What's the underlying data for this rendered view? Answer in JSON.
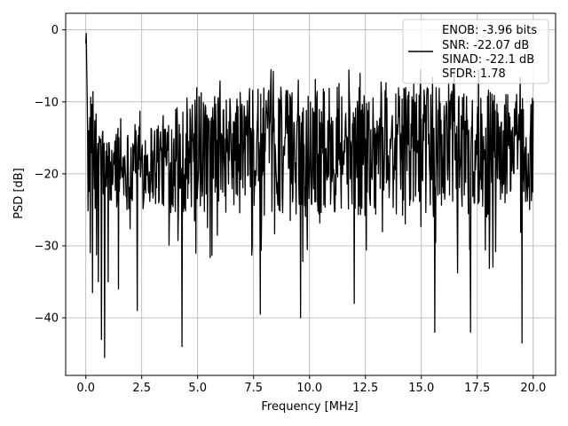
{
  "chart_data": {
    "type": "line",
    "xlabel": "Frequency [MHz]",
    "ylabel": "PSD [dB]",
    "xlim": [
      -0.9,
      21.0
    ],
    "ylim": [
      -48.0,
      2.3
    ],
    "xticks": [
      0.0,
      2.5,
      5.0,
      7.5,
      10.0,
      12.5,
      15.0,
      17.5,
      20.0
    ],
    "xtick_labels": [
      "0.0",
      "2.5",
      "5.0",
      "7.5",
      "10.0",
      "12.5",
      "15.0",
      "17.5",
      "20.0"
    ],
    "yticks": [
      0,
      -10,
      -20,
      -30,
      -40
    ],
    "ytick_labels": [
      "0",
      "−10",
      "−20",
      "−30",
      "−40"
    ],
    "grid": true,
    "legend_position": "top-right",
    "legend_lines": [
      "ENOB: -3.96 bits",
      "SNR: -22.07 dB",
      "SINAD: -22.1 dB",
      "SFDR: 1.78"
    ],
    "line_color": "#000000",
    "series": [
      {
        "x_start": 0.0,
        "x_end": 20.0,
        "x_step": 0.02,
        "initial_peak": [
          {
            "x": 0.0,
            "y": -1.9
          },
          {
            "x": 0.02,
            "y": -0.5
          },
          {
            "x": 0.04,
            "y": -5.0
          },
          {
            "x": 0.06,
            "y": -9.0
          },
          {
            "x": 0.08,
            "y": -14.0
          }
        ],
        "envelope_top": [
          {
            "x": 0.0,
            "y": -8.0
          },
          {
            "x": 1.0,
            "y": -15.0
          },
          {
            "x": 2.5,
            "y": -13.0
          },
          {
            "x": 5.0,
            "y": -10.0
          },
          {
            "x": 7.5,
            "y": -8.0
          },
          {
            "x": 10.0,
            "y": -8.0
          },
          {
            "x": 12.5,
            "y": -8.0
          },
          {
            "x": 15.0,
            "y": -8.0
          },
          {
            "x": 17.5,
            "y": -8.0
          },
          {
            "x": 20.0,
            "y": -9.0
          }
        ],
        "envelope_bottom": [
          {
            "x": 0.0,
            "y": -25.0
          },
          {
            "x": 1.0,
            "y": -25.0
          },
          {
            "x": 2.5,
            "y": -25.0
          },
          {
            "x": 5.0,
            "y": -26.0
          },
          {
            "x": 10.0,
            "y": -26.0
          },
          {
            "x": 15.0,
            "y": -26.0
          },
          {
            "x": 20.0,
            "y": -26.0
          }
        ],
        "deep_dips": [
          {
            "x": 0.3,
            "y": -36.5
          },
          {
            "x": 0.55,
            "y": -35.0
          },
          {
            "x": 0.7,
            "y": -43.0
          },
          {
            "x": 0.83,
            "y": -45.5
          },
          {
            "x": 1.0,
            "y": -35.0
          },
          {
            "x": 1.45,
            "y": -36.0
          },
          {
            "x": 2.3,
            "y": -39.0
          },
          {
            "x": 4.3,
            "y": -44.0
          },
          {
            "x": 7.8,
            "y": -39.5
          },
          {
            "x": 9.6,
            "y": -40.0
          },
          {
            "x": 12.0,
            "y": -38.0
          },
          {
            "x": 15.6,
            "y": -42.0
          },
          {
            "x": 17.2,
            "y": -42.0
          },
          {
            "x": 19.5,
            "y": -43.5
          }
        ]
      }
    ]
  }
}
